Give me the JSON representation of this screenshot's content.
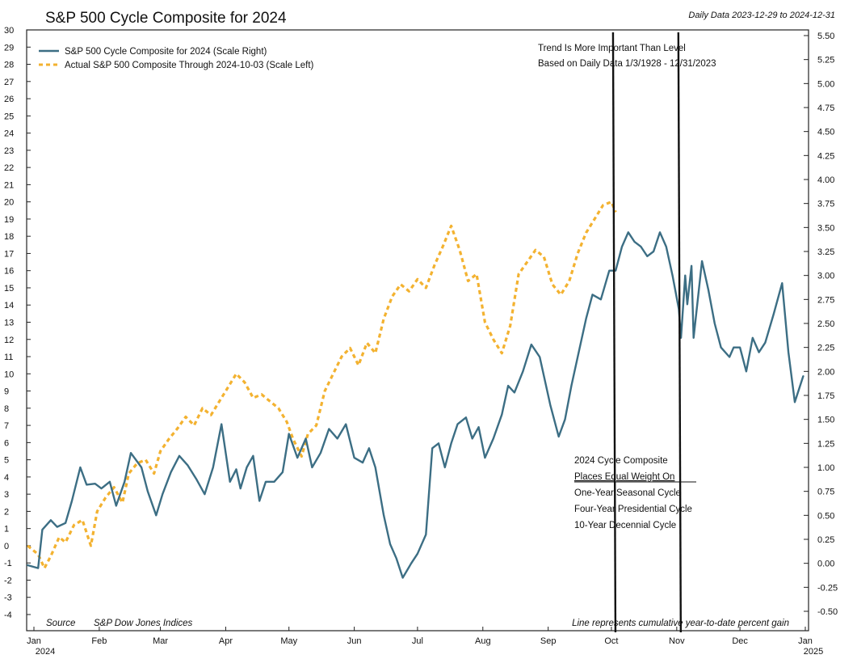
{
  "chart_data": {
    "type": "line",
    "title": "S&P 500 Cycle Composite for 2024",
    "date_range": "Daily Data 2023-12-29 to 2024-12-31",
    "x_ticks": [
      "Jan",
      "Feb",
      "Mar",
      "Apr",
      "May",
      "Jun",
      "Jul",
      "Aug",
      "Sep",
      "Oct",
      "Nov",
      "Dec",
      "Jan"
    ],
    "x_tick_years": {
      "first": "2024",
      "last": "2025"
    },
    "y_left_ticks": [
      "30",
      "29",
      "28",
      "27",
      "26",
      "25",
      "24",
      "23",
      "22",
      "21",
      "20",
      "19",
      "18",
      "17",
      "16",
      "15",
      "14",
      "13",
      "12",
      "11",
      "10",
      "9",
      "8",
      "7",
      "6",
      "5",
      "4",
      "3",
      "2",
      "1",
      "0",
      "-1",
      "-2",
      "-3",
      "-4"
    ],
    "y_right_ticks": [
      "5.50",
      "5.25",
      "5.00",
      "4.75",
      "4.50",
      "4.25",
      "4.00",
      "3.75",
      "3.50",
      "3.25",
      "3.00",
      "2.75",
      "2.50",
      "2.25",
      "2.00",
      "1.75",
      "1.50",
      "1.25",
      "1.00",
      "0.75",
      "0.50",
      "0.25",
      "0.00",
      "-0.25",
      "-0.50"
    ],
    "ylim_left": [
      -4,
      30
    ],
    "ylim_right": [
      -0.5,
      5.5
    ],
    "grid": false,
    "legend_position": "top-left",
    "series": [
      {
        "name": "S&P 500 Cycle Composite for 2024 (Scale Right)",
        "axis": "right",
        "color": "#3c6e84",
        "style": "solid",
        "points": [
          [
            "2023-12-29",
            -0.02
          ],
          [
            "2024-01-03",
            -0.05
          ],
          [
            "2024-01-05",
            0.35
          ],
          [
            "2024-01-09",
            0.45
          ],
          [
            "2024-01-12",
            0.38
          ],
          [
            "2024-01-16",
            0.42
          ],
          [
            "2024-01-19",
            0.65
          ],
          [
            "2024-01-23",
            1.0
          ],
          [
            "2024-01-26",
            0.82
          ],
          [
            "2024-01-30",
            0.83
          ],
          [
            "2024-02-02",
            0.78
          ],
          [
            "2024-02-06",
            0.85
          ],
          [
            "2024-02-09",
            0.6
          ],
          [
            "2024-02-13",
            0.85
          ],
          [
            "2024-02-16",
            1.15
          ],
          [
            "2024-02-21",
            1.0
          ],
          [
            "2024-02-24",
            0.75
          ],
          [
            "2024-02-28",
            0.5
          ],
          [
            "2024-03-02",
            0.72
          ],
          [
            "2024-03-06",
            0.95
          ],
          [
            "2024-03-10",
            1.12
          ],
          [
            "2024-03-14",
            1.02
          ],
          [
            "2024-03-18",
            0.88
          ],
          [
            "2024-03-22",
            0.72
          ],
          [
            "2024-03-26",
            1.0
          ],
          [
            "2024-03-30",
            1.45
          ],
          [
            "2024-04-03",
            0.85
          ],
          [
            "2024-04-06",
            0.98
          ],
          [
            "2024-04-08",
            0.78
          ],
          [
            "2024-04-11",
            1.0
          ],
          [
            "2024-04-14",
            1.12
          ],
          [
            "2024-04-17",
            0.65
          ],
          [
            "2024-04-20",
            0.85
          ],
          [
            "2024-04-24",
            0.85
          ],
          [
            "2024-04-28",
            0.95
          ],
          [
            "2024-05-01",
            1.35
          ],
          [
            "2024-05-05",
            1.1
          ],
          [
            "2024-05-09",
            1.3
          ],
          [
            "2024-05-12",
            1.0
          ],
          [
            "2024-05-16",
            1.15
          ],
          [
            "2024-05-20",
            1.4
          ],
          [
            "2024-05-24",
            1.3
          ],
          [
            "2024-05-28",
            1.45
          ],
          [
            "2024-06-01",
            1.1
          ],
          [
            "2024-06-05",
            1.05
          ],
          [
            "2024-06-08",
            1.2
          ],
          [
            "2024-06-11",
            1.0
          ],
          [
            "2024-06-15",
            0.5
          ],
          [
            "2024-06-18",
            0.2
          ],
          [
            "2024-06-21",
            0.05
          ],
          [
            "2024-06-24",
            -0.15
          ],
          [
            "2024-06-28",
            0.0
          ],
          [
            "2024-07-01",
            0.1
          ],
          [
            "2024-07-05",
            0.3
          ],
          [
            "2024-07-08",
            1.2
          ],
          [
            "2024-07-11",
            1.25
          ],
          [
            "2024-07-14",
            1.0
          ],
          [
            "2024-07-17",
            1.25
          ],
          [
            "2024-07-20",
            1.45
          ],
          [
            "2024-07-24",
            1.52
          ],
          [
            "2024-07-27",
            1.3
          ],
          [
            "2024-07-30",
            1.42
          ],
          [
            "2024-08-02",
            1.1
          ],
          [
            "2024-08-06",
            1.3
          ],
          [
            "2024-08-10",
            1.55
          ],
          [
            "2024-08-13",
            1.85
          ],
          [
            "2024-08-16",
            1.78
          ],
          [
            "2024-08-20",
            2.0
          ],
          [
            "2024-08-24",
            2.28
          ],
          [
            "2024-08-28",
            2.15
          ],
          [
            "2024-09-02",
            1.65
          ],
          [
            "2024-09-06",
            1.32
          ],
          [
            "2024-09-09",
            1.5
          ],
          [
            "2024-09-12",
            1.85
          ],
          [
            "2024-09-15",
            2.15
          ],
          [
            "2024-09-19",
            2.55
          ],
          [
            "2024-09-22",
            2.8
          ],
          [
            "2024-09-26",
            2.75
          ],
          [
            "2024-09-30",
            3.05
          ],
          [
            "2024-10-03",
            3.05
          ],
          [
            "2024-10-06",
            3.3
          ],
          [
            "2024-10-09",
            3.45
          ],
          [
            "2024-10-12",
            3.35
          ],
          [
            "2024-10-15",
            3.3
          ],
          [
            "2024-10-18",
            3.2
          ],
          [
            "2024-10-21",
            3.25
          ],
          [
            "2024-10-24",
            3.45
          ],
          [
            "2024-10-27",
            3.3
          ],
          [
            "2024-10-30",
            3.0
          ],
          [
            "2024-11-03",
            2.35
          ],
          [
            "2024-11-06",
            2.7
          ],
          [
            "2024-11-09",
            2.35
          ],
          [
            "2024-11-13",
            3.15
          ],
          [
            "2024-11-16",
            2.85
          ],
          [
            "2024-11-19",
            2.5
          ],
          [
            "2024-11-22",
            2.25
          ],
          [
            "2024-11-26",
            2.15
          ],
          [
            "2024-11-28",
            2.25
          ],
          [
            "2024-12-01",
            2.25
          ],
          [
            "2024-12-04",
            2.0
          ],
          [
            "2024-12-07",
            2.35
          ],
          [
            "2024-12-10",
            2.2
          ],
          [
            "2024-12-13",
            2.3
          ],
          [
            "2024-12-17",
            2.6
          ],
          [
            "2024-12-21",
            2.92
          ],
          [
            "2024-12-24",
            2.2
          ],
          [
            "2024-12-27",
            1.68
          ],
          [
            "2024-12-31",
            1.95
          ],
          [
            "2024-11-02",
            2.65
          ],
          [
            "2024-11-05",
            3.0
          ],
          [
            "2024-11-08",
            3.1
          ]
        ]
      },
      {
        "name": "Actual S&P 500 Composite Through 2024-10-03 (Scale Left)",
        "axis": "left",
        "color": "#f3b230",
        "style": "dashed",
        "points": [
          [
            "2023-12-29",
            0.0
          ],
          [
            "2024-01-03",
            -0.5
          ],
          [
            "2024-01-06",
            -1.3
          ],
          [
            "2024-01-09",
            -0.6
          ],
          [
            "2024-01-13",
            0.5
          ],
          [
            "2024-01-16",
            0.2
          ],
          [
            "2024-01-20",
            1.2
          ],
          [
            "2024-01-24",
            1.5
          ],
          [
            "2024-01-28",
            0.0
          ],
          [
            "2024-01-31",
            2.0
          ],
          [
            "2024-02-04",
            2.8
          ],
          [
            "2024-02-08",
            3.4
          ],
          [
            "2024-02-12",
            2.5
          ],
          [
            "2024-02-15",
            4.2
          ],
          [
            "2024-02-19",
            4.8
          ],
          [
            "2024-02-23",
            5.0
          ],
          [
            "2024-02-27",
            4.2
          ],
          [
            "2024-03-01",
            5.5
          ],
          [
            "2024-03-05",
            6.2
          ],
          [
            "2024-03-09",
            6.8
          ],
          [
            "2024-03-13",
            7.5
          ],
          [
            "2024-03-17",
            7.0
          ],
          [
            "2024-03-21",
            8.0
          ],
          [
            "2024-03-25",
            7.6
          ],
          [
            "2024-03-29",
            8.4
          ],
          [
            "2024-04-02",
            9.2
          ],
          [
            "2024-04-06",
            10.0
          ],
          [
            "2024-04-10",
            9.5
          ],
          [
            "2024-04-14",
            8.6
          ],
          [
            "2024-04-18",
            8.8
          ],
          [
            "2024-04-22",
            8.4
          ],
          [
            "2024-04-26",
            8.0
          ],
          [
            "2024-04-30",
            7.2
          ],
          [
            "2024-05-03",
            6.2
          ],
          [
            "2024-05-07",
            5.2
          ],
          [
            "2024-05-10",
            6.5
          ],
          [
            "2024-05-14",
            7.0
          ],
          [
            "2024-05-18",
            9.0
          ],
          [
            "2024-05-22",
            10.0
          ],
          [
            "2024-05-26",
            11.0
          ],
          [
            "2024-05-30",
            11.5
          ],
          [
            "2024-06-03",
            10.5
          ],
          [
            "2024-06-07",
            11.8
          ],
          [
            "2024-06-11",
            11.2
          ],
          [
            "2024-06-15",
            13.2
          ],
          [
            "2024-06-19",
            14.5
          ],
          [
            "2024-06-23",
            15.2
          ],
          [
            "2024-06-27",
            14.8
          ],
          [
            "2024-07-01",
            15.5
          ],
          [
            "2024-07-05",
            15.0
          ],
          [
            "2024-07-09",
            16.3
          ],
          [
            "2024-07-13",
            17.4
          ],
          [
            "2024-07-17",
            18.6
          ],
          [
            "2024-07-21",
            17.2
          ],
          [
            "2024-07-25",
            15.4
          ],
          [
            "2024-07-29",
            15.8
          ],
          [
            "2024-08-02",
            13.0
          ],
          [
            "2024-08-06",
            12.0
          ],
          [
            "2024-08-10",
            11.2
          ],
          [
            "2024-08-14",
            12.8
          ],
          [
            "2024-08-18",
            15.8
          ],
          [
            "2024-08-22",
            16.5
          ],
          [
            "2024-08-26",
            17.2
          ],
          [
            "2024-08-30",
            16.8
          ],
          [
            "2024-09-03",
            15.2
          ],
          [
            "2024-09-07",
            14.6
          ],
          [
            "2024-09-11",
            15.4
          ],
          [
            "2024-09-15",
            17.0
          ],
          [
            "2024-09-19",
            18.2
          ],
          [
            "2024-09-23",
            19.0
          ],
          [
            "2024-09-27",
            19.8
          ],
          [
            "2024-10-01",
            20.0
          ],
          [
            "2024-10-03",
            19.4
          ]
        ]
      }
    ],
    "annotations": {
      "top_note": [
        "Trend Is More Important Than Level",
        "Based on Daily Data 1/3/1928 - 12/31/2023"
      ],
      "composite_note_title": "2024 Cycle Composite",
      "composite_note_subtitle": "Places Equal Weight On",
      "composite_note_items": [
        "One-Year Seasonal Cycle",
        "Four-Year Presidential Cycle",
        "10-Year Decennial Cycle"
      ],
      "source_label": "Source",
      "source_value": "S&P Dow Jones Indices",
      "footnote": "Line represents cumulative year-to-date percent gain",
      "vertical_markers": [
        "2024-10-01",
        "2024-11-01"
      ]
    }
  }
}
